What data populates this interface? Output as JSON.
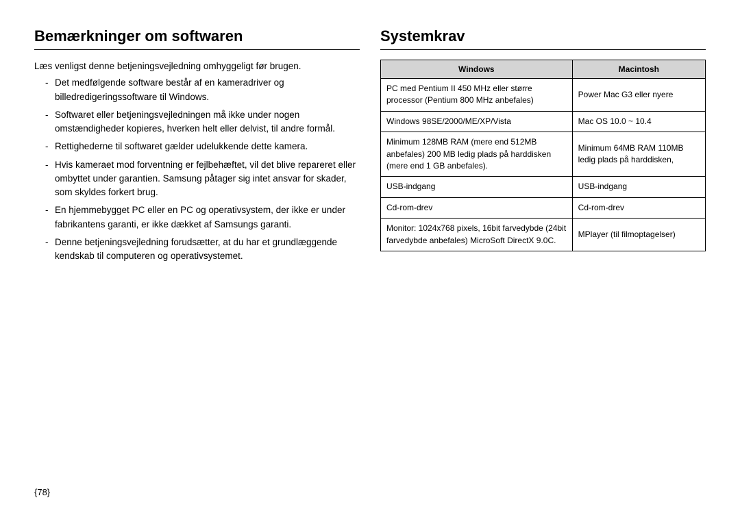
{
  "page_number": "{78}",
  "left": {
    "heading": "Bemærkninger om softwaren",
    "intro": "Læs venligst denne betjeningsvejledning omhyggeligt før brugen.",
    "bullets": [
      "Det medfølgende software består af en kameradriver og billedredigeringssoftware til Windows.",
      "Softwaret eller betjeningsvejledningen må ikke under nogen omstændigheder kopieres, hverken helt eller delvist, til andre formål.",
      "Rettighederne til softwaret gælder udelukkende dette kamera.",
      "Hvis kameraet mod forventning er fejlbehæftet, vil det blive repareret eller ombyttet under garantien.  Samsung påtager sig intet ansvar for skader, som skyldes forkert brug.",
      "En hjemmebygget PC eller en PC og operativsystem, der ikke er under fabrikantens garanti, er ikke dækket af Samsungs garanti.",
      "Denne betjeningsvejledning forudsætter, at du har et grundlæggende kendskab til computeren og operativsystemet."
    ]
  },
  "right": {
    "heading": "Systemkrav",
    "table": {
      "header_windows": "Windows",
      "header_mac": "Macintosh",
      "rows": [
        {
          "w": "PC med Pentium II 450 MHz eller større processor (Pentium 800 MHz anbefales)",
          "m": "Power Mac G3 eller nyere"
        },
        {
          "w": "Windows 98SE/2000/ME/XP/Vista",
          "m": "Mac OS 10.0 ~ 10.4"
        },
        {
          "w": "Minimum 128MB RAM (mere end 512MB anbefales) 200 MB ledig plads på harddisken (mere end 1 GB anbefales).",
          "m": "Minimum 64MB RAM 110MB ledig plads på harddisken,"
        },
        {
          "w": "USB-indgang",
          "m": "USB-indgang"
        },
        {
          "w": "Cd-rom-drev",
          "m": "Cd-rom-drev"
        },
        {
          "w": "Monitor: 1024x768 pixels, 16bit farvedybde (24bit farvedybde anbefales) MicroSoft DirectX 9.0C.",
          "m": "MPlayer (til filmoptagelser)"
        }
      ]
    }
  }
}
